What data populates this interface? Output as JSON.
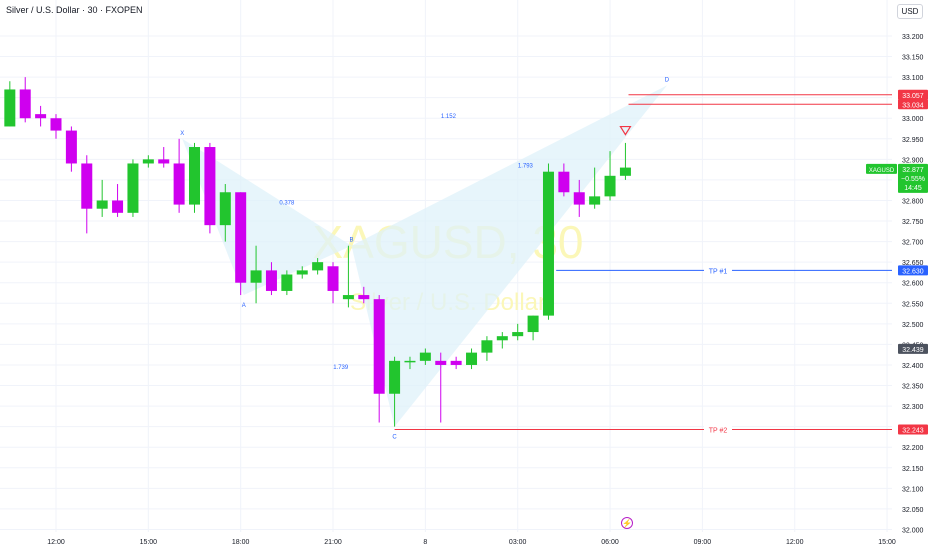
{
  "header": {
    "symbol_title": "Silver / U.S. Dollar · 30 · FXOPEN",
    "currency_button": "USD"
  },
  "watermark": {
    "symbol": "XAGUSD, 30",
    "name": "Silver / U.S. Dollar"
  },
  "chart_data": {
    "type": "candlestick",
    "symbol": "XAGUSD",
    "interval": "30",
    "ylim": [
      32.0,
      33.25
    ],
    "y_ticks": [
      "33.200",
      "33.150",
      "33.100",
      "33.050",
      "33.000",
      "32.950",
      "32.900",
      "32.850",
      "32.800",
      "32.750",
      "32.700",
      "32.650",
      "32.600",
      "32.550",
      "32.500",
      "32.450",
      "32.400",
      "32.350",
      "32.300",
      "32.250",
      "32.200",
      "32.150",
      "32.100",
      "32.050",
      "32.000"
    ],
    "x_ticks": [
      {
        "t": 0,
        "label": "12:00"
      },
      {
        "t": 6,
        "label": "15:00"
      },
      {
        "t": 12,
        "label": "18:00"
      },
      {
        "t": 18,
        "label": "21:00"
      },
      {
        "t": 24,
        "label": "8"
      },
      {
        "t": 30,
        "label": "03:00"
      },
      {
        "t": 36,
        "label": "06:00"
      },
      {
        "t": 42,
        "label": "09:00"
      },
      {
        "t": 48,
        "label": "12:00"
      },
      {
        "t": 54,
        "label": "15:00"
      }
    ],
    "candles": [
      {
        "t": -3,
        "o": 32.98,
        "h": 33.09,
        "l": 32.98,
        "c": 33.07
      },
      {
        "t": -2,
        "o": 33.07,
        "h": 33.1,
        "l": 32.99,
        "c": 33.0
      },
      {
        "t": -1,
        "o": 33.01,
        "h": 33.03,
        "l": 32.98,
        "c": 33.0
      },
      {
        "t": 0,
        "o": 33.0,
        "h": 33.01,
        "l": 32.95,
        "c": 32.97
      },
      {
        "t": 1,
        "o": 32.97,
        "h": 32.98,
        "l": 32.87,
        "c": 32.89
      },
      {
        "t": 2,
        "o": 32.89,
        "h": 32.91,
        "l": 32.72,
        "c": 32.78
      },
      {
        "t": 3,
        "o": 32.78,
        "h": 32.85,
        "l": 32.76,
        "c": 32.8
      },
      {
        "t": 4,
        "o": 32.8,
        "h": 32.84,
        "l": 32.76,
        "c": 32.77
      },
      {
        "t": 5,
        "o": 32.77,
        "h": 32.9,
        "l": 32.76,
        "c": 32.89
      },
      {
        "t": 6,
        "o": 32.89,
        "h": 32.91,
        "l": 32.88,
        "c": 32.9
      },
      {
        "t": 7,
        "o": 32.9,
        "h": 32.93,
        "l": 32.88,
        "c": 32.89
      },
      {
        "t": 8,
        "o": 32.89,
        "h": 32.95,
        "l": 32.77,
        "c": 32.79
      },
      {
        "t": 9,
        "o": 32.79,
        "h": 32.94,
        "l": 32.77,
        "c": 32.93
      },
      {
        "t": 10,
        "o": 32.93,
        "h": 32.94,
        "l": 32.72,
        "c": 32.74
      },
      {
        "t": 11,
        "o": 32.74,
        "h": 32.84,
        "l": 32.7,
        "c": 32.82
      },
      {
        "t": 12,
        "o": 32.82,
        "h": 32.82,
        "l": 32.57,
        "c": 32.6
      },
      {
        "t": 13,
        "o": 32.6,
        "h": 32.69,
        "l": 32.55,
        "c": 32.63
      },
      {
        "t": 14,
        "o": 32.63,
        "h": 32.65,
        "l": 32.57,
        "c": 32.58
      },
      {
        "t": 15,
        "o": 32.58,
        "h": 32.63,
        "l": 32.57,
        "c": 32.62
      },
      {
        "t": 16,
        "o": 32.62,
        "h": 32.64,
        "l": 32.61,
        "c": 32.63
      },
      {
        "t": 17,
        "o": 32.63,
        "h": 32.66,
        "l": 32.62,
        "c": 32.65
      },
      {
        "t": 18,
        "o": 32.64,
        "h": 32.65,
        "l": 32.55,
        "c": 32.58
      },
      {
        "t": 19,
        "o": 32.56,
        "h": 32.69,
        "l": 32.54,
        "c": 32.57
      },
      {
        "t": 20,
        "o": 32.57,
        "h": 32.59,
        "l": 32.55,
        "c": 32.56
      },
      {
        "t": 21,
        "o": 32.56,
        "h": 32.57,
        "l": 32.26,
        "c": 32.33
      },
      {
        "t": 22,
        "o": 32.33,
        "h": 32.42,
        "l": 32.25,
        "c": 32.41
      },
      {
        "t": 23,
        "o": 32.41,
        "h": 32.42,
        "l": 32.39,
        "c": 32.41
      },
      {
        "t": 24,
        "o": 32.41,
        "h": 32.44,
        "l": 32.4,
        "c": 32.43
      },
      {
        "t": 25,
        "o": 32.41,
        "h": 32.43,
        "l": 32.26,
        "c": 32.4
      },
      {
        "t": 26,
        "o": 32.41,
        "h": 32.42,
        "l": 32.39,
        "c": 32.4
      },
      {
        "t": 27,
        "o": 32.4,
        "h": 32.44,
        "l": 32.39,
        "c": 32.43
      },
      {
        "t": 28,
        "o": 32.43,
        "h": 32.47,
        "l": 32.41,
        "c": 32.46
      },
      {
        "t": 29,
        "o": 32.46,
        "h": 32.48,
        "l": 32.44,
        "c": 32.47
      },
      {
        "t": 30,
        "o": 32.47,
        "h": 32.5,
        "l": 32.46,
        "c": 32.48
      },
      {
        "t": 31,
        "o": 32.48,
        "h": 32.52,
        "l": 32.46,
        "c": 32.52
      },
      {
        "t": 32,
        "o": 32.52,
        "h": 32.89,
        "l": 32.51,
        "c": 32.87
      },
      {
        "t": 33,
        "o": 32.87,
        "h": 32.89,
        "l": 32.81,
        "c": 32.82
      },
      {
        "t": 34,
        "o": 32.82,
        "h": 32.85,
        "l": 32.76,
        "c": 32.79
      },
      {
        "t": 35,
        "o": 32.79,
        "h": 32.88,
        "l": 32.78,
        "c": 32.81
      },
      {
        "t": 36,
        "o": 32.81,
        "h": 32.92,
        "l": 32.8,
        "c": 32.86
      },
      {
        "t": 37,
        "o": 32.86,
        "h": 32.94,
        "l": 32.85,
        "c": 32.88
      }
    ],
    "current_price": {
      "label": "XAGUSD",
      "value": "32.877",
      "change": "−0.55%",
      "countdown": "14:45"
    },
    "price_labels": [
      {
        "value": 33.057,
        "text": "33.057",
        "color": "#f23645"
      },
      {
        "value": 33.034,
        "text": "33.034",
        "color": "#f23645"
      },
      {
        "value": 32.63,
        "text": "32.630",
        "color": "#2962ff"
      },
      {
        "value": 32.439,
        "text": "32.439",
        "color": "#4c525e"
      },
      {
        "value": 32.243,
        "text": "32.243",
        "color": "#f23645"
      }
    ],
    "horizontal_lines": [
      {
        "value": 33.057,
        "t_start": 37.2,
        "color": "#f23645",
        "text": ""
      },
      {
        "value": 33.034,
        "t_start": 37.2,
        "color": "#f23645",
        "text": ""
      },
      {
        "value": 32.63,
        "t_start": 32.5,
        "color": "#2962ff",
        "text": "TP #1"
      },
      {
        "value": 32.243,
        "t_start": 22.0,
        "color": "#f23645",
        "text": "TP #2"
      }
    ],
    "harmonic_pattern": {
      "points": [
        {
          "name": "X",
          "t": 8.2,
          "v": 32.95
        },
        {
          "name": "A",
          "t": 12.2,
          "v": 32.57
        },
        {
          "name": "B",
          "t": 19.2,
          "v": 32.69
        },
        {
          "name": "C",
          "t": 22.0,
          "v": 32.25
        },
        {
          "name": "D",
          "t": 39.7,
          "v": 33.08
        }
      ],
      "ratios": [
        {
          "text": "0.378",
          "t": 15.0,
          "v": 32.79
        },
        {
          "text": "1.152",
          "t": 25.5,
          "v": 33.0
        },
        {
          "text": "1.739",
          "t": 18.5,
          "v": 32.39
        },
        {
          "text": "1.793",
          "t": 30.5,
          "v": 32.88
        }
      ],
      "fill": "#dff1f9"
    },
    "signal_marker": {
      "t": 37.0,
      "v": 32.97,
      "color": "#f23645"
    },
    "colors": {
      "up": "#22c52e",
      "down": "#cf00ef",
      "grid": "#f0f3fa",
      "axis_text": "#131722"
    }
  }
}
